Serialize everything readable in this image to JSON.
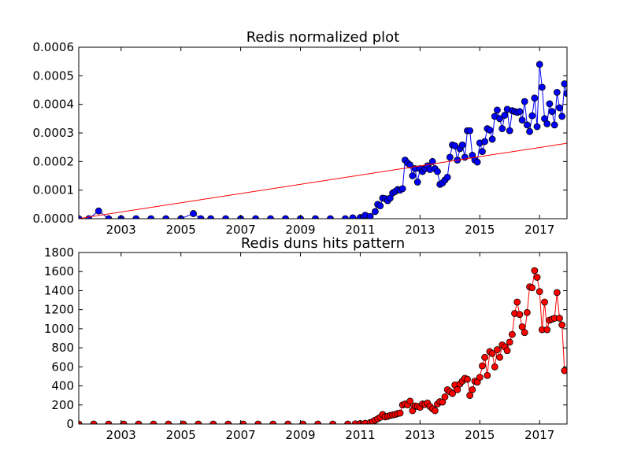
{
  "chart_data": [
    {
      "type": "line",
      "title": "Redis normalized plot",
      "xlabel": "",
      "ylabel": "",
      "xlim": [
        "2001-08",
        "2017-12"
      ],
      "ylim": [
        0,
        0.0006
      ],
      "x_ticks": [
        "2003",
        "2005",
        "2007",
        "2009",
        "2011",
        "2013",
        "2015",
        "2017"
      ],
      "y_ticks": [
        "0.0000",
        "0.0001",
        "0.0002",
        "0.0003",
        "0.0004",
        "0.0005",
        "0.0006"
      ],
      "grid": false,
      "series": [
        {
          "color": "#0000ff",
          "marker": "circle",
          "points": [
            [
              "2001-08",
              0
            ],
            [
              "2001-12",
              0
            ],
            [
              "2002-04",
              2.7e-05
            ],
            [
              "2002-08",
              0
            ],
            [
              "2003-01",
              0
            ],
            [
              "2003-07",
              0
            ],
            [
              "2004-01",
              0
            ],
            [
              "2004-07",
              0
            ],
            [
              "2005-01",
              0
            ],
            [
              "2005-06",
              1.8e-05
            ],
            [
              "2005-09",
              0
            ],
            [
              "2006-01",
              0
            ],
            [
              "2006-07",
              0
            ],
            [
              "2007-01",
              0
            ],
            [
              "2007-07",
              0
            ],
            [
              "2008-01",
              0
            ],
            [
              "2008-07",
              0
            ],
            [
              "2009-01",
              0
            ],
            [
              "2009-07",
              0
            ],
            [
              "2010-01",
              0
            ],
            [
              "2010-07",
              0
            ],
            [
              "2010-10",
              3e-06
            ],
            [
              "2011-01",
              4e-06
            ],
            [
              "2011-03",
              1.2e-05
            ],
            [
              "2011-05",
              8e-06
            ],
            [
              "2011-07",
              2.5e-05
            ],
            [
              "2011-08",
              5e-05
            ],
            [
              "2011-09",
              4.5e-05
            ],
            [
              "2011-10",
              7.2e-05
            ],
            [
              "2011-11",
              7e-05
            ],
            [
              "2011-12",
              6.3e-05
            ],
            [
              "2012-01",
              7.2e-05
            ],
            [
              "2012-02",
              9e-05
            ],
            [
              "2012-03",
              9.5e-05
            ],
            [
              "2012-04",
              0.000102
            ],
            [
              "2012-05",
              0.0001
            ],
            [
              "2012-06",
              0.000105
            ],
            [
              "2012-07",
              0.000205
            ],
            [
              "2012-08",
              0.000195
            ],
            [
              "2012-09",
              0.000188
            ],
            [
              "2012-10",
              0.00015
            ],
            [
              "2012-11",
              0.000175
            ],
            [
              "2012-12",
              0.000128
            ],
            [
              "2013-01",
              0.000175
            ],
            [
              "2013-02",
              0.000165
            ],
            [
              "2013-03",
              0.000175
            ],
            [
              "2013-04",
              0.000185
            ],
            [
              "2013-05",
              0.000172
            ],
            [
              "2013-06",
              0.0002
            ],
            [
              "2013-07",
              0.000175
            ],
            [
              "2013-08",
              0.000165
            ],
            [
              "2013-09",
              0.00012
            ],
            [
              "2013-10",
              0.000125
            ],
            [
              "2013-11",
              0.000135
            ],
            [
              "2013-12",
              0.000145
            ],
            [
              "2014-01",
              0.000215
            ],
            [
              "2014-02",
              0.000258
            ],
            [
              "2014-03",
              0.000255
            ],
            [
              "2014-04",
              0.000205
            ],
            [
              "2014-05",
              0.000245
            ],
            [
              "2014-06",
              0.000258
            ],
            [
              "2014-07",
              0.000215
            ],
            [
              "2014-08",
              0.000308
            ],
            [
              "2014-09",
              0.000308
            ],
            [
              "2014-10",
              0.000222
            ],
            [
              "2014-11",
              0.000205
            ],
            [
              "2014-12",
              0.000198
            ],
            [
              "2015-01",
              0.000265
            ],
            [
              "2015-02",
              0.000235
            ],
            [
              "2015-03",
              0.00027
            ],
            [
              "2015-04",
              0.000315
            ],
            [
              "2015-05",
              0.00031
            ],
            [
              "2015-06",
              0.000278
            ],
            [
              "2015-07",
              0.000358
            ],
            [
              "2015-08",
              0.00038
            ],
            [
              "2015-09",
              0.00035
            ],
            [
              "2015-10",
              0.000315
            ],
            [
              "2015-11",
              0.000362
            ],
            [
              "2015-12",
              0.000383
            ],
            [
              "2016-01",
              0.000308
            ],
            [
              "2016-02",
              0.000378
            ],
            [
              "2016-03",
              0.000375
            ],
            [
              "2016-04",
              0.000372
            ],
            [
              "2016-05",
              0.000375
            ],
            [
              "2016-06",
              0.000345
            ],
            [
              "2016-07",
              0.00041
            ],
            [
              "2016-08",
              0.000328
            ],
            [
              "2016-09",
              0.000305
            ],
            [
              "2016-10",
              0.00036
            ],
            [
              "2016-11",
              0.000422
            ],
            [
              "2016-12",
              0.000322
            ],
            [
              "2017-01",
              0.00054
            ],
            [
              "2017-02",
              0.00046
            ],
            [
              "2017-03",
              0.00035
            ],
            [
              "2017-04",
              0.000332
            ],
            [
              "2017-05",
              0.000402
            ],
            [
              "2017-06",
              0.000375
            ],
            [
              "2017-07",
              0.000328
            ],
            [
              "2017-08",
              0.000442
            ],
            [
              "2017-09",
              0.000388
            ],
            [
              "2017-10",
              0.000358
            ],
            [
              "2017-11",
              0.000472
            ],
            [
              "2017-12",
              0.000438
            ]
          ]
        },
        {
          "color": "#ff0000",
          "marker": "none",
          "points": [
            [
              "2001-08",
              5e-07
            ],
            [
              "2017-12",
              0.000264
            ]
          ]
        }
      ]
    },
    {
      "type": "line",
      "title": "Redis duns hits pattern",
      "xlabel": "",
      "ylabel": "",
      "xlim": [
        "2001-08",
        "2017-12"
      ],
      "ylim": [
        0,
        1800
      ],
      "x_ticks": [
        "2003",
        "2005",
        "2007",
        "2009",
        "2011",
        "2013",
        "2015",
        "2017"
      ],
      "y_ticks": [
        "0",
        "200",
        "400",
        "600",
        "800",
        "1000",
        "1200",
        "1400",
        "1600",
        "1800"
      ],
      "grid": false,
      "series": [
        {
          "color": "#ff0000",
          "marker": "circle",
          "points": [
            [
              "2001-08",
              0
            ],
            [
              "2002-02",
              0
            ],
            [
              "2002-08",
              0
            ],
            [
              "2003-02",
              0
            ],
            [
              "2003-08",
              0
            ],
            [
              "2004-02",
              0
            ],
            [
              "2004-08",
              0
            ],
            [
              "2005-02",
              0
            ],
            [
              "2005-08",
              0
            ],
            [
              "2006-02",
              0
            ],
            [
              "2006-08",
              0
            ],
            [
              "2007-02",
              0
            ],
            [
              "2007-08",
              0
            ],
            [
              "2008-02",
              0
            ],
            [
              "2008-08",
              0
            ],
            [
              "2009-02",
              0
            ],
            [
              "2009-08",
              0
            ],
            [
              "2010-02",
              0
            ],
            [
              "2010-08",
              0
            ],
            [
              "2010-11",
              2
            ],
            [
              "2011-01",
              5
            ],
            [
              "2011-03",
              8
            ],
            [
              "2011-05",
              15
            ],
            [
              "2011-06",
              25
            ],
            [
              "2011-07",
              40
            ],
            [
              "2011-08",
              55
            ],
            [
              "2011-09",
              70
            ],
            [
              "2011-10",
              100
            ],
            [
              "2011-11",
              75
            ],
            [
              "2011-12",
              80
            ],
            [
              "2012-01",
              90
            ],
            [
              "2012-02",
              95
            ],
            [
              "2012-03",
              100
            ],
            [
              "2012-04",
              110
            ],
            [
              "2012-05",
              115
            ],
            [
              "2012-06",
              200
            ],
            [
              "2012-07",
              210
            ],
            [
              "2012-08",
              200
            ],
            [
              "2012-09",
              240
            ],
            [
              "2012-10",
              140
            ],
            [
              "2012-11",
              190
            ],
            [
              "2012-12",
              185
            ],
            [
              "2013-01",
              175
            ],
            [
              "2013-02",
              210
            ],
            [
              "2013-03",
              205
            ],
            [
              "2013-04",
              220
            ],
            [
              "2013-05",
              185
            ],
            [
              "2013-06",
              160
            ],
            [
              "2013-07",
              140
            ],
            [
              "2013-08",
              210
            ],
            [
              "2013-09",
              235
            ],
            [
              "2013-10",
              230
            ],
            [
              "2013-11",
              285
            ],
            [
              "2013-12",
              360
            ],
            [
              "2014-01",
              340
            ],
            [
              "2014-02",
              320
            ],
            [
              "2014-03",
              410
            ],
            [
              "2014-04",
              360
            ],
            [
              "2014-05",
              420
            ],
            [
              "2014-06",
              450
            ],
            [
              "2014-07",
              480
            ],
            [
              "2014-08",
              470
            ],
            [
              "2014-09",
              300
            ],
            [
              "2014-10",
              360
            ],
            [
              "2014-11",
              450
            ],
            [
              "2014-12",
              440
            ],
            [
              "2015-01",
              490
            ],
            [
              "2015-02",
              610
            ],
            [
              "2015-03",
              700
            ],
            [
              "2015-04",
              510
            ],
            [
              "2015-05",
              760
            ],
            [
              "2015-06",
              740
            ],
            [
              "2015-07",
              600
            ],
            [
              "2015-08",
              780
            ],
            [
              "2015-09",
              700
            ],
            [
              "2015-10",
              830
            ],
            [
              "2015-11",
              810
            ],
            [
              "2015-12",
              770
            ],
            [
              "2016-01",
              860
            ],
            [
              "2016-02",
              940
            ],
            [
              "2016-03",
              1160
            ],
            [
              "2016-04",
              1280
            ],
            [
              "2016-05",
              1150
            ],
            [
              "2016-06",
              1020
            ],
            [
              "2016-07",
              960
            ],
            [
              "2016-08",
              1170
            ],
            [
              "2016-09",
              1440
            ],
            [
              "2016-10",
              1430
            ],
            [
              "2016-11",
              1610
            ],
            [
              "2016-12",
              1540
            ],
            [
              "2017-01",
              1390
            ],
            [
              "2017-02",
              990
            ],
            [
              "2017-03",
              1280
            ],
            [
              "2017-04",
              990
            ],
            [
              "2017-05",
              1090
            ],
            [
              "2017-06",
              1100
            ],
            [
              "2017-07",
              1110
            ],
            [
              "2017-08",
              1380
            ],
            [
              "2017-09",
              1110
            ],
            [
              "2017-10",
              1040
            ],
            [
              "2017-11",
              560
            ]
          ]
        }
      ]
    }
  ]
}
